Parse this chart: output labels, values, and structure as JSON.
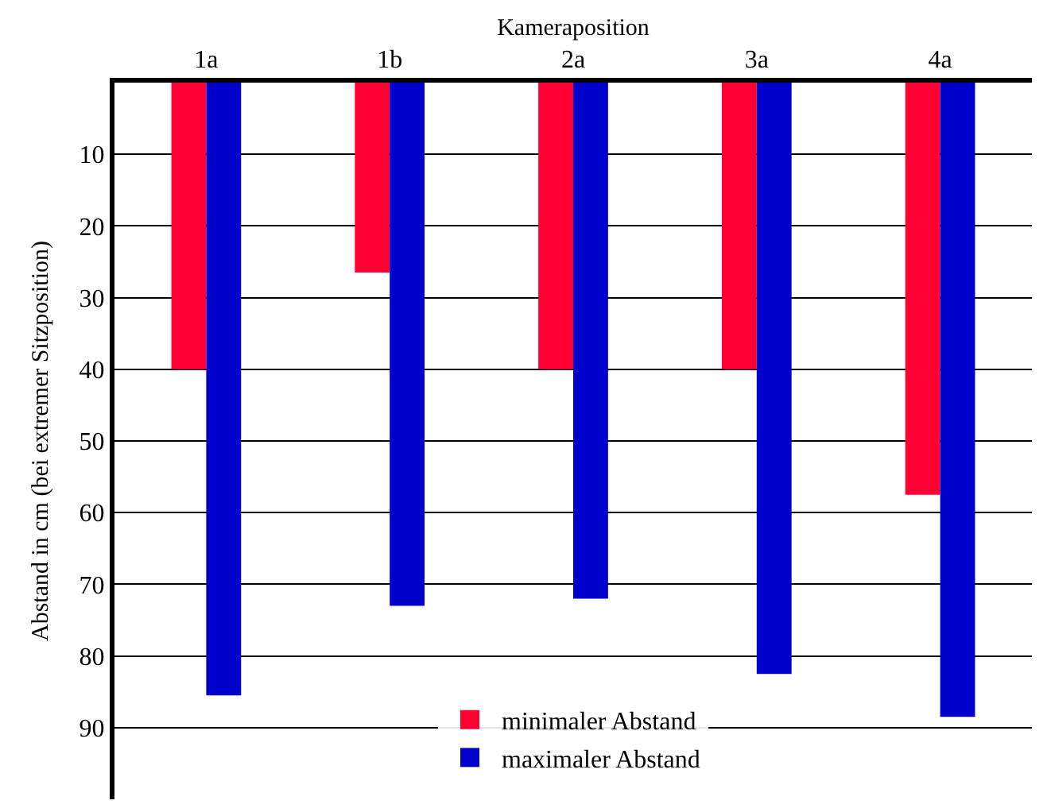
{
  "chart_data": {
    "type": "bar",
    "xlabel": "Kameraposition",
    "ylabel": "Abstand in cm (bei extremer Sitzposition)",
    "categories": [
      "1a",
      "1b",
      "2a",
      "3a",
      "4a"
    ],
    "series": [
      {
        "name": "minimaler Abstand",
        "color": "#ff0033",
        "values": [
          40,
          26.5,
          40,
          40,
          57.5
        ]
      },
      {
        "name": "maximaler Abstand",
        "color": "#0000cc",
        "values": [
          85.5,
          73,
          72,
          82.5,
          88.5
        ]
      }
    ],
    "ylim": [
      100,
      0
    ],
    "yticks": [
      10,
      20,
      30,
      40,
      50,
      60,
      70,
      80,
      90
    ],
    "grid": "y",
    "legend": "bottom"
  }
}
